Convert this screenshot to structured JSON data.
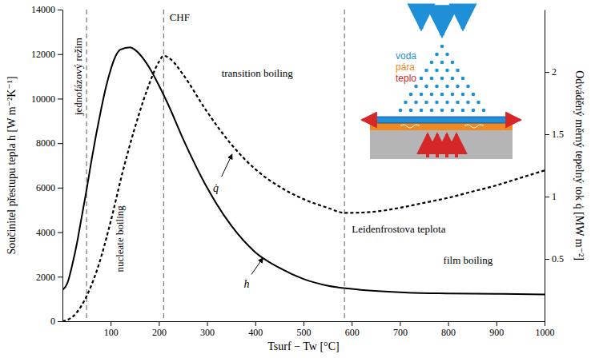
{
  "chart_data": {
    "type": "line",
    "xlabel": "Tsurf − Tw [°C]",
    "ylabel": "Součinitel přestupu tepla h [W m⁻²K⁻¹]",
    "y2label": "Odváděný měrný tepelný tok q̇ [MW m⁻²]",
    "xlim": [
      0,
      1000
    ],
    "xticks": [
      100,
      200,
      300,
      400,
      500,
      600,
      700,
      800,
      900,
      1000
    ],
    "ylim": [
      0,
      14000
    ],
    "yticks": [
      0,
      2000,
      4000,
      6000,
      8000,
      10000,
      12000,
      14000
    ],
    "y2lim": [
      0,
      2.5
    ],
    "y2ticks": [
      0.5,
      1,
      1.5,
      2
    ],
    "grid": false,
    "series": [
      {
        "name": "h",
        "color": "#000000",
        "line_style": "solid",
        "x": [
          0,
          10,
          20,
          30,
          40,
          50,
          60,
          70,
          80,
          90,
          100,
          110,
          120,
          140,
          150,
          160,
          180,
          200,
          220,
          250,
          300,
          350,
          400,
          450,
          500,
          550,
          600,
          700,
          800,
          900,
          1000
        ],
        "values": [
          1400,
          1700,
          2500,
          3500,
          4700,
          5900,
          7200,
          8400,
          9500,
          10500,
          11300,
          11900,
          12200,
          12300,
          12200,
          12000,
          11400,
          10600,
          9700,
          8200,
          6000,
          4300,
          3100,
          2400,
          1900,
          1600,
          1450,
          1300,
          1250,
          1230,
          1200
        ]
      },
      {
        "name": "q̇",
        "color": "#000000",
        "line_style": "dashed",
        "axis": "y2",
        "x": [
          0,
          25,
          50,
          75,
          100,
          125,
          150,
          175,
          200,
          210,
          225,
          250,
          300,
          350,
          400,
          450,
          500,
          550,
          585,
          600,
          650,
          700,
          750,
          800,
          850,
          900,
          950,
          1000
        ],
        "values": [
          0,
          0.05,
          0.2,
          0.45,
          0.8,
          1.2,
          1.55,
          1.85,
          2.08,
          2.13,
          2.1,
          1.98,
          1.68,
          1.42,
          1.22,
          1.08,
          0.98,
          0.91,
          0.87,
          0.87,
          0.88,
          0.91,
          0.95,
          0.99,
          1.04,
          1.09,
          1.15,
          1.21
        ]
      }
    ],
    "vlines": [
      50,
      210,
      585
    ],
    "annotations": [
      {
        "text": "jednofázový režim"
      },
      {
        "text": "nucleate boiling"
      },
      {
        "text": "CHF"
      },
      {
        "text": "transition boiling"
      },
      {
        "text": "Leidenfrostova teplota"
      },
      {
        "text": "film boiling"
      }
    ],
    "inset": {
      "labels": [
        {
          "text": "voda",
          "color": "#1f8fd8"
        },
        {
          "text": "pára",
          "color": "#ef8a22"
        },
        {
          "text": "teplo",
          "color": "#d62728"
        }
      ]
    }
  }
}
